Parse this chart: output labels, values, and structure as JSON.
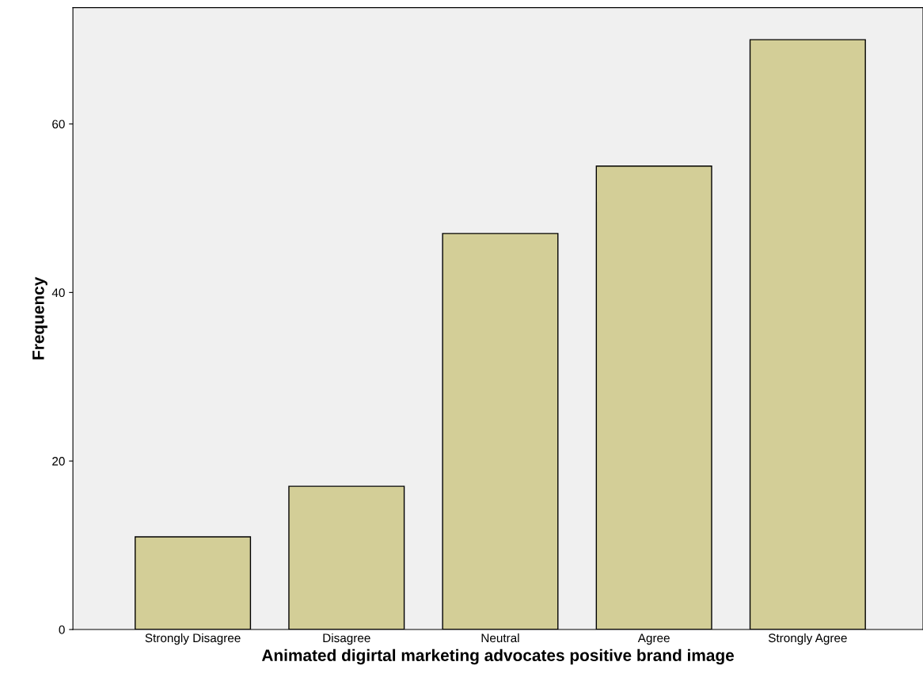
{
  "chart_data": {
    "type": "bar",
    "xlabel": "Animated digirtal marketing advocates positive brand image",
    "ylabel": "Frequency",
    "categories": [
      "Strongly Disagree",
      "Disagree",
      "Neutral",
      "Agree",
      "Strongly Agree"
    ],
    "values": [
      11,
      17,
      47,
      55,
      70
    ],
    "color": "#d3ce97",
    "ylim": [
      0,
      73.8
    ],
    "yticks": [
      0,
      20,
      40,
      60
    ],
    "grid": false,
    "legend": false
  }
}
